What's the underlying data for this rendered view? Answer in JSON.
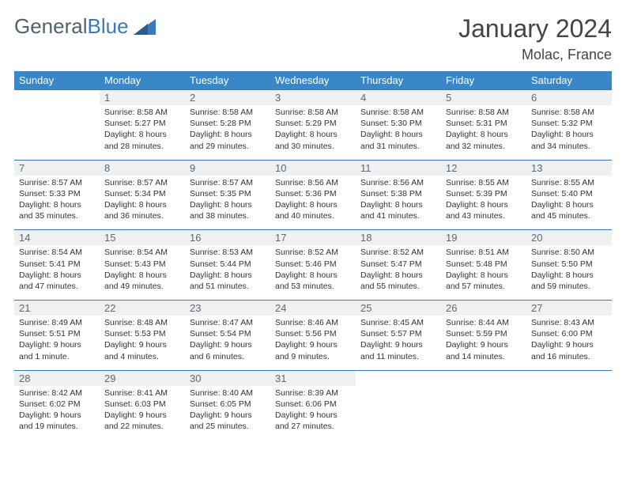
{
  "brand": {
    "part1": "General",
    "part2": "Blue"
  },
  "title": "January 2024",
  "location": "Molac, France",
  "colors": {
    "header_bg": "#3a87c8",
    "accent_line": "#3a7ab8",
    "daynum_bg": "#eef0f2",
    "text": "#333333"
  },
  "dow": [
    "Sunday",
    "Monday",
    "Tuesday",
    "Wednesday",
    "Thursday",
    "Friday",
    "Saturday"
  ],
  "weeks": [
    {
      "nums": [
        "",
        "1",
        "2",
        "3",
        "4",
        "5",
        "6"
      ],
      "cells": [
        null,
        {
          "sunrise": "Sunrise: 8:58 AM",
          "sunset": "Sunset: 5:27 PM",
          "day1": "Daylight: 8 hours",
          "day2": "and 28 minutes."
        },
        {
          "sunrise": "Sunrise: 8:58 AM",
          "sunset": "Sunset: 5:28 PM",
          "day1": "Daylight: 8 hours",
          "day2": "and 29 minutes."
        },
        {
          "sunrise": "Sunrise: 8:58 AM",
          "sunset": "Sunset: 5:29 PM",
          "day1": "Daylight: 8 hours",
          "day2": "and 30 minutes."
        },
        {
          "sunrise": "Sunrise: 8:58 AM",
          "sunset": "Sunset: 5:30 PM",
          "day1": "Daylight: 8 hours",
          "day2": "and 31 minutes."
        },
        {
          "sunrise": "Sunrise: 8:58 AM",
          "sunset": "Sunset: 5:31 PM",
          "day1": "Daylight: 8 hours",
          "day2": "and 32 minutes."
        },
        {
          "sunrise": "Sunrise: 8:58 AM",
          "sunset": "Sunset: 5:32 PM",
          "day1": "Daylight: 8 hours",
          "day2": "and 34 minutes."
        }
      ]
    },
    {
      "nums": [
        "7",
        "8",
        "9",
        "10",
        "11",
        "12",
        "13"
      ],
      "cells": [
        {
          "sunrise": "Sunrise: 8:57 AM",
          "sunset": "Sunset: 5:33 PM",
          "day1": "Daylight: 8 hours",
          "day2": "and 35 minutes."
        },
        {
          "sunrise": "Sunrise: 8:57 AM",
          "sunset": "Sunset: 5:34 PM",
          "day1": "Daylight: 8 hours",
          "day2": "and 36 minutes."
        },
        {
          "sunrise": "Sunrise: 8:57 AM",
          "sunset": "Sunset: 5:35 PM",
          "day1": "Daylight: 8 hours",
          "day2": "and 38 minutes."
        },
        {
          "sunrise": "Sunrise: 8:56 AM",
          "sunset": "Sunset: 5:36 PM",
          "day1": "Daylight: 8 hours",
          "day2": "and 40 minutes."
        },
        {
          "sunrise": "Sunrise: 8:56 AM",
          "sunset": "Sunset: 5:38 PM",
          "day1": "Daylight: 8 hours",
          "day2": "and 41 minutes."
        },
        {
          "sunrise": "Sunrise: 8:55 AM",
          "sunset": "Sunset: 5:39 PM",
          "day1": "Daylight: 8 hours",
          "day2": "and 43 minutes."
        },
        {
          "sunrise": "Sunrise: 8:55 AM",
          "sunset": "Sunset: 5:40 PM",
          "day1": "Daylight: 8 hours",
          "day2": "and 45 minutes."
        }
      ]
    },
    {
      "nums": [
        "14",
        "15",
        "16",
        "17",
        "18",
        "19",
        "20"
      ],
      "cells": [
        {
          "sunrise": "Sunrise: 8:54 AM",
          "sunset": "Sunset: 5:41 PM",
          "day1": "Daylight: 8 hours",
          "day2": "and 47 minutes."
        },
        {
          "sunrise": "Sunrise: 8:54 AM",
          "sunset": "Sunset: 5:43 PM",
          "day1": "Daylight: 8 hours",
          "day2": "and 49 minutes."
        },
        {
          "sunrise": "Sunrise: 8:53 AM",
          "sunset": "Sunset: 5:44 PM",
          "day1": "Daylight: 8 hours",
          "day2": "and 51 minutes."
        },
        {
          "sunrise": "Sunrise: 8:52 AM",
          "sunset": "Sunset: 5:46 PM",
          "day1": "Daylight: 8 hours",
          "day2": "and 53 minutes."
        },
        {
          "sunrise": "Sunrise: 8:52 AM",
          "sunset": "Sunset: 5:47 PM",
          "day1": "Daylight: 8 hours",
          "day2": "and 55 minutes."
        },
        {
          "sunrise": "Sunrise: 8:51 AM",
          "sunset": "Sunset: 5:48 PM",
          "day1": "Daylight: 8 hours",
          "day2": "and 57 minutes."
        },
        {
          "sunrise": "Sunrise: 8:50 AM",
          "sunset": "Sunset: 5:50 PM",
          "day1": "Daylight: 8 hours",
          "day2": "and 59 minutes."
        }
      ]
    },
    {
      "nums": [
        "21",
        "22",
        "23",
        "24",
        "25",
        "26",
        "27"
      ],
      "cells": [
        {
          "sunrise": "Sunrise: 8:49 AM",
          "sunset": "Sunset: 5:51 PM",
          "day1": "Daylight: 9 hours",
          "day2": "and 1 minute."
        },
        {
          "sunrise": "Sunrise: 8:48 AM",
          "sunset": "Sunset: 5:53 PM",
          "day1": "Daylight: 9 hours",
          "day2": "and 4 minutes."
        },
        {
          "sunrise": "Sunrise: 8:47 AM",
          "sunset": "Sunset: 5:54 PM",
          "day1": "Daylight: 9 hours",
          "day2": "and 6 minutes."
        },
        {
          "sunrise": "Sunrise: 8:46 AM",
          "sunset": "Sunset: 5:56 PM",
          "day1": "Daylight: 9 hours",
          "day2": "and 9 minutes."
        },
        {
          "sunrise": "Sunrise: 8:45 AM",
          "sunset": "Sunset: 5:57 PM",
          "day1": "Daylight: 9 hours",
          "day2": "and 11 minutes."
        },
        {
          "sunrise": "Sunrise: 8:44 AM",
          "sunset": "Sunset: 5:59 PM",
          "day1": "Daylight: 9 hours",
          "day2": "and 14 minutes."
        },
        {
          "sunrise": "Sunrise: 8:43 AM",
          "sunset": "Sunset: 6:00 PM",
          "day1": "Daylight: 9 hours",
          "day2": "and 16 minutes."
        }
      ]
    },
    {
      "nums": [
        "28",
        "29",
        "30",
        "31",
        "",
        "",
        ""
      ],
      "cells": [
        {
          "sunrise": "Sunrise: 8:42 AM",
          "sunset": "Sunset: 6:02 PM",
          "day1": "Daylight: 9 hours",
          "day2": "and 19 minutes."
        },
        {
          "sunrise": "Sunrise: 8:41 AM",
          "sunset": "Sunset: 6:03 PM",
          "day1": "Daylight: 9 hours",
          "day2": "and 22 minutes."
        },
        {
          "sunrise": "Sunrise: 8:40 AM",
          "sunset": "Sunset: 6:05 PM",
          "day1": "Daylight: 9 hours",
          "day2": "and 25 minutes."
        },
        {
          "sunrise": "Sunrise: 8:39 AM",
          "sunset": "Sunset: 6:06 PM",
          "day1": "Daylight: 9 hours",
          "day2": "and 27 minutes."
        },
        null,
        null,
        null
      ]
    }
  ]
}
